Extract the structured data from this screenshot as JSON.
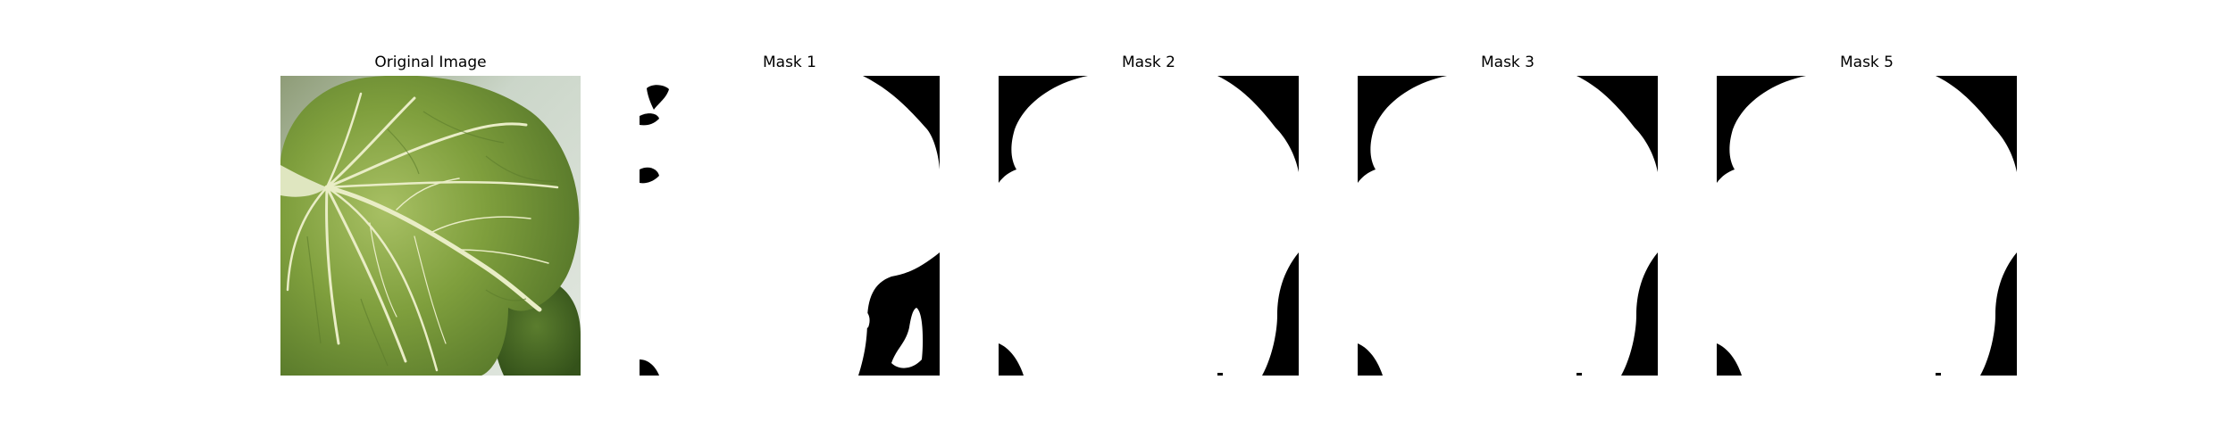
{
  "panels": [
    {
      "title": "Original Image",
      "kind": "photo",
      "subject": "leaf-photo"
    },
    {
      "title": "Mask 1",
      "kind": "mask",
      "variant": "mask1"
    },
    {
      "title": "Mask 2",
      "kind": "mask",
      "variant": "mask2"
    },
    {
      "title": "Mask 3",
      "kind": "mask",
      "variant": "mask3"
    },
    {
      "title": "Mask 5",
      "kind": "mask",
      "variant": "mask5"
    }
  ],
  "colors": {
    "mask_foreground": "#ffffff",
    "mask_background": "#000000",
    "leaf_dark": "#4f7026",
    "leaf_mid": "#7f9f3d",
    "leaf_light": "#a7bf62",
    "vein": "#e9edc6",
    "photo_background": "#d5ddd3"
  }
}
